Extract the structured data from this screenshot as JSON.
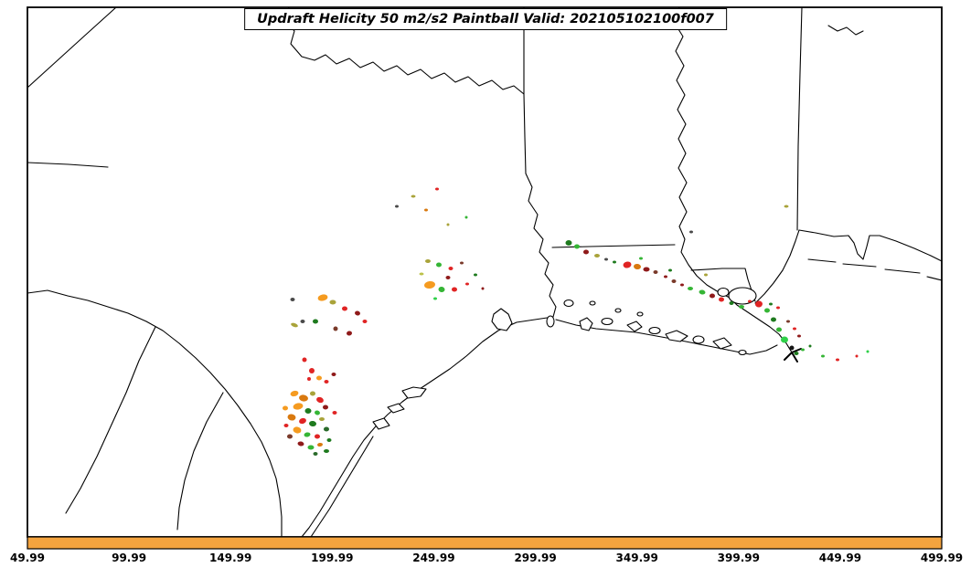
{
  "title": "Updraft Helicity 50 m2/s2 Paintball Valid: 202105102100f007",
  "colorbar": {
    "fill_color": "#F4A43F",
    "ticks": [
      "49.99",
      "99.99",
      "149.99",
      "199.99",
      "249.99",
      "299.99",
      "349.99",
      "399.99",
      "449.99",
      "499.99"
    ]
  },
  "map": {
    "palette": {
      "red": "#e02424",
      "darkred": "#8f1a1a",
      "maroon": "#7a3a2a",
      "orange": "#f59b20",
      "darkorange": "#d9790f",
      "olive": "#a9a33a",
      "yellowgreen": "#bcc24a",
      "green": "#35b535",
      "brightgreen": "#2fd049",
      "darkgreen": "#1e7a1e",
      "forest": "#2a6b2a",
      "gray": "#4a4a4a",
      "black": "#151515"
    },
    "markers": [
      [
        322,
        431,
        9,
        6,
        "orange",
        -15
      ],
      [
        332,
        436,
        10,
        7,
        "darkorange",
        10
      ],
      [
        342,
        431,
        6,
        5,
        "olive",
        0
      ],
      [
        350,
        438,
        8,
        6,
        "red",
        20
      ],
      [
        326,
        445,
        11,
        7,
        "orange",
        -10
      ],
      [
        337,
        450,
        7,
        6,
        "darkgreen",
        0
      ],
      [
        347,
        452,
        6,
        5,
        "green",
        15
      ],
      [
        356,
        446,
        6,
        5,
        "darkred",
        0
      ],
      [
        319,
        457,
        9,
        7,
        "darkorange",
        12
      ],
      [
        331,
        461,
        8,
        6,
        "red",
        -18
      ],
      [
        342,
        464,
        8,
        6,
        "darkgreen",
        8
      ],
      [
        352,
        459,
        6,
        4,
        "olive",
        0
      ],
      [
        325,
        471,
        9,
        7,
        "orange",
        14
      ],
      [
        336,
        476,
        7,
        5,
        "green",
        -12
      ],
      [
        347,
        478,
        6,
        5,
        "red",
        0
      ],
      [
        357,
        470,
        6,
        5,
        "forest",
        0
      ],
      [
        329,
        486,
        7,
        5,
        "darkred",
        10
      ],
      [
        340,
        490,
        7,
        5,
        "green",
        0
      ],
      [
        350,
        487,
        6,
        4,
        "darkorange",
        -8
      ],
      [
        360,
        482,
        5,
        4,
        "darkgreen",
        0
      ],
      [
        317,
        478,
        6,
        5,
        "maroon",
        0
      ],
      [
        313,
        466,
        5,
        4,
        "red",
        0
      ],
      [
        357,
        494,
        6,
        4,
        "darkgreen",
        0
      ],
      [
        366,
        452,
        5,
        4,
        "red",
        0
      ],
      [
        312,
        447,
        6,
        5,
        "orange",
        0
      ],
      [
        345,
        497,
        5,
        4,
        "forest",
        0
      ],
      [
        320,
        328,
        5,
        4,
        "gray",
        0
      ],
      [
        353,
        326,
        11,
        7,
        "orange",
        -12
      ],
      [
        364,
        331,
        7,
        5,
        "olive",
        0
      ],
      [
        377,
        338,
        6,
        5,
        "red",
        0
      ],
      [
        391,
        343,
        6,
        5,
        "darkred",
        15
      ],
      [
        399,
        352,
        5,
        4,
        "red",
        0
      ],
      [
        345,
        352,
        6,
        5,
        "darkgreen",
        0
      ],
      [
        322,
        356,
        8,
        4,
        "olive",
        20
      ],
      [
        331,
        352,
        5,
        4,
        "gray",
        0
      ],
      [
        367,
        360,
        5,
        5,
        "maroon",
        0
      ],
      [
        382,
        365,
        6,
        5,
        "darkred",
        -10
      ],
      [
        333,
        394,
        5,
        5,
        "red",
        0
      ],
      [
        341,
        406,
        6,
        6,
        "red",
        0
      ],
      [
        349,
        414,
        6,
        5,
        "orange",
        0
      ],
      [
        357,
        418,
        5,
        4,
        "red",
        0
      ],
      [
        365,
        410,
        5,
        4,
        "darkred",
        0
      ],
      [
        338,
        415,
        4,
        4,
        "red",
        0
      ],
      [
        434,
        226,
        4,
        3,
        "gray",
        0
      ],
      [
        452,
        215,
        5,
        3,
        "olive",
        0
      ],
      [
        478,
        207,
        4,
        3,
        "red",
        0
      ],
      [
        466,
        230,
        4,
        3,
        "darkorange",
        0
      ],
      [
        490,
        246,
        3,
        3,
        "olive",
        0
      ],
      [
        510,
        238,
        3,
        3,
        "green",
        0
      ],
      [
        468,
        286,
        6,
        4,
        "olive",
        0
      ],
      [
        480,
        290,
        6,
        5,
        "green",
        0
      ],
      [
        493,
        294,
        5,
        4,
        "red",
        0
      ],
      [
        505,
        288,
        4,
        3,
        "maroon",
        0
      ],
      [
        461,
        300,
        5,
        3,
        "yellowgreen",
        0
      ],
      [
        490,
        304,
        5,
        4,
        "darkred",
        0
      ],
      [
        470,
        312,
        12,
        8,
        "orange",
        -8
      ],
      [
        483,
        317,
        7,
        6,
        "green",
        10
      ],
      [
        497,
        317,
        6,
        5,
        "red",
        0
      ],
      [
        511,
        311,
        4,
        3,
        "red",
        0
      ],
      [
        520,
        301,
        4,
        3,
        "darkgreen",
        0
      ],
      [
        476,
        327,
        4,
        3,
        "brightgreen",
        0
      ],
      [
        528,
        316,
        3,
        3,
        "darkred",
        0
      ],
      [
        622,
        266,
        7,
        6,
        "darkgreen",
        0
      ],
      [
        631,
        270,
        6,
        5,
        "green",
        0
      ],
      [
        641,
        276,
        6,
        5,
        "darkred",
        0
      ],
      [
        653,
        280,
        6,
        4,
        "olive",
        0
      ],
      [
        663,
        284,
        4,
        3,
        "gray",
        0
      ],
      [
        672,
        287,
        4,
        3,
        "darkgreen",
        0
      ],
      [
        686,
        290,
        9,
        7,
        "red",
        -12
      ],
      [
        697,
        292,
        8,
        6,
        "darkorange",
        8
      ],
      [
        707,
        295,
        7,
        5,
        "darkred",
        0
      ],
      [
        717,
        298,
        5,
        4,
        "maroon",
        0
      ],
      [
        728,
        303,
        4,
        3,
        "darkred",
        0
      ],
      [
        737,
        308,
        5,
        4,
        "maroon",
        0
      ],
      [
        746,
        312,
        4,
        3,
        "darkred",
        0
      ],
      [
        755,
        316,
        6,
        4,
        "green",
        0
      ],
      [
        768,
        320,
        7,
        5,
        "green",
        10
      ],
      [
        779,
        324,
        6,
        5,
        "darkred",
        0
      ],
      [
        789,
        328,
        6,
        5,
        "red",
        0
      ],
      [
        800,
        332,
        5,
        4,
        "darkgreen",
        0
      ],
      [
        811,
        336,
        6,
        4,
        "green",
        0
      ],
      [
        820,
        330,
        4,
        3,
        "red",
        0
      ],
      [
        830,
        333,
        8,
        7,
        "red",
        -10
      ],
      [
        839,
        340,
        6,
        5,
        "green",
        0
      ],
      [
        843,
        333,
        4,
        3,
        "darkgreen",
        0
      ],
      [
        851,
        337,
        4,
        3,
        "red",
        0
      ],
      [
        846,
        350,
        6,
        5,
        "darkgreen",
        0
      ],
      [
        852,
        361,
        6,
        5,
        "green",
        0
      ],
      [
        862,
        352,
        4,
        3,
        "maroon",
        0
      ],
      [
        869,
        360,
        4,
        3,
        "red",
        0
      ],
      [
        874,
        368,
        4,
        3,
        "darkred",
        0
      ],
      [
        858,
        372,
        8,
        7,
        "brightgreen",
        0
      ],
      [
        866,
        381,
        5,
        5,
        "black",
        0
      ],
      [
        871,
        387,
        5,
        4,
        "darkgreen",
        0
      ],
      [
        878,
        383,
        4,
        3,
        "green",
        0
      ],
      [
        886,
        379,
        3,
        3,
        "darkgreen",
        0
      ],
      [
        900,
        390,
        4,
        3,
        "green",
        0
      ],
      [
        916,
        394,
        4,
        3,
        "red",
        0
      ],
      [
        937,
        390,
        3,
        3,
        "red",
        0
      ],
      [
        949,
        385,
        3,
        3,
        "brightgreen",
        0
      ],
      [
        756,
        254,
        4,
        3,
        "gray",
        0
      ],
      [
        772,
        301,
        4,
        3,
        "olive",
        0
      ],
      [
        860,
        226,
        5,
        3,
        "olive",
        0
      ],
      [
        701,
        283,
        4,
        3,
        "green",
        0
      ],
      [
        733,
        296,
        4,
        3,
        "darkgreen",
        0
      ]
    ]
  }
}
